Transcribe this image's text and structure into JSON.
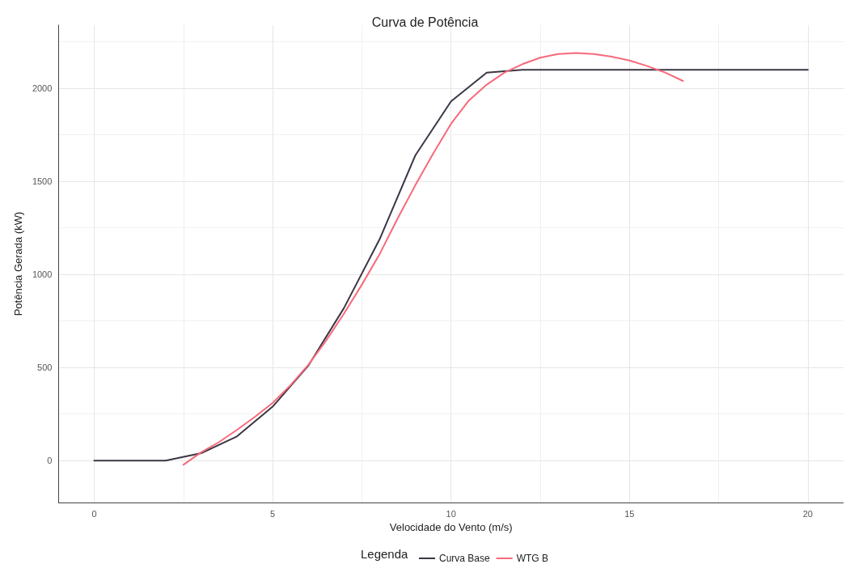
{
  "chart_data": {
    "type": "line",
    "title": "Curva de Potência",
    "xlabel": "Velocidade do Vento (m/s)",
    "ylabel": "Potência Gerada (kW)",
    "legend_title": "Legenda",
    "xlim": [
      -1,
      21
    ],
    "xticks": [
      0,
      5,
      10,
      15,
      20
    ],
    "ylim": [
      -225,
      2340
    ],
    "yticks": [
      0,
      500,
      1000,
      1500,
      2000
    ],
    "grid": true,
    "legend": "bottom",
    "marker": "none",
    "line_style": "solid",
    "series": [
      {
        "name": "Curva Base",
        "color": "#3b3644",
        "x": [
          0,
          2,
          3,
          4,
          5,
          6,
          7,
          8,
          9,
          10,
          11,
          12,
          20
        ],
        "values": [
          0,
          0,
          40,
          130,
          290,
          510,
          820,
          1190,
          1640,
          1930,
          2085,
          2100,
          2100
        ]
      },
      {
        "name": "WTG B",
        "color": "#f8697a",
        "x": [
          2.5,
          3,
          3.5,
          4,
          4.5,
          5,
          5.5,
          6,
          6.5,
          7,
          7.5,
          8,
          8.5,
          9,
          9.5,
          10,
          10.5,
          11,
          11.5,
          12,
          12.5,
          13,
          13.5,
          14,
          14.5,
          15,
          15.5,
          16,
          16.5
        ],
        "values": [
          -22,
          45,
          100,
          165,
          235,
          310,
          405,
          515,
          645,
          790,
          945,
          1110,
          1300,
          1480,
          1650,
          1810,
          1935,
          2020,
          2085,
          2130,
          2165,
          2185,
          2190,
          2185,
          2170,
          2150,
          2120,
          2085,
          2040
        ]
      }
    ]
  }
}
